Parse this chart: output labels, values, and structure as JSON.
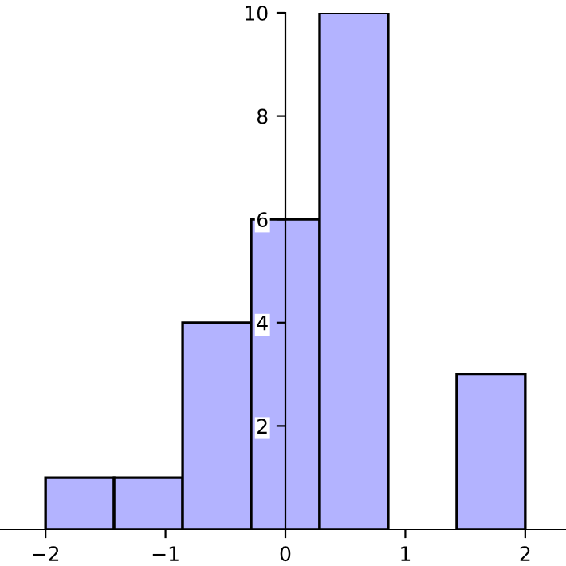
{
  "chart_data": {
    "type": "histogram",
    "bins": [
      -2,
      -1.4286,
      -0.8571,
      -0.2857,
      0.2857,
      0.8571,
      1.4286,
      2
    ],
    "values": [
      1,
      1,
      4,
      6,
      10,
      0,
      3
    ],
    "color": "#b3b3ff",
    "xlim": [
      -2.38,
      2.34
    ],
    "ylim": [
      0,
      10
    ],
    "xticks": [
      {
        "value": -2,
        "label": "−2"
      },
      {
        "value": -1,
        "label": "−1"
      },
      0,
      1,
      2
    ],
    "yticks": [
      2,
      4,
      6,
      8,
      10
    ],
    "grid": false
  }
}
